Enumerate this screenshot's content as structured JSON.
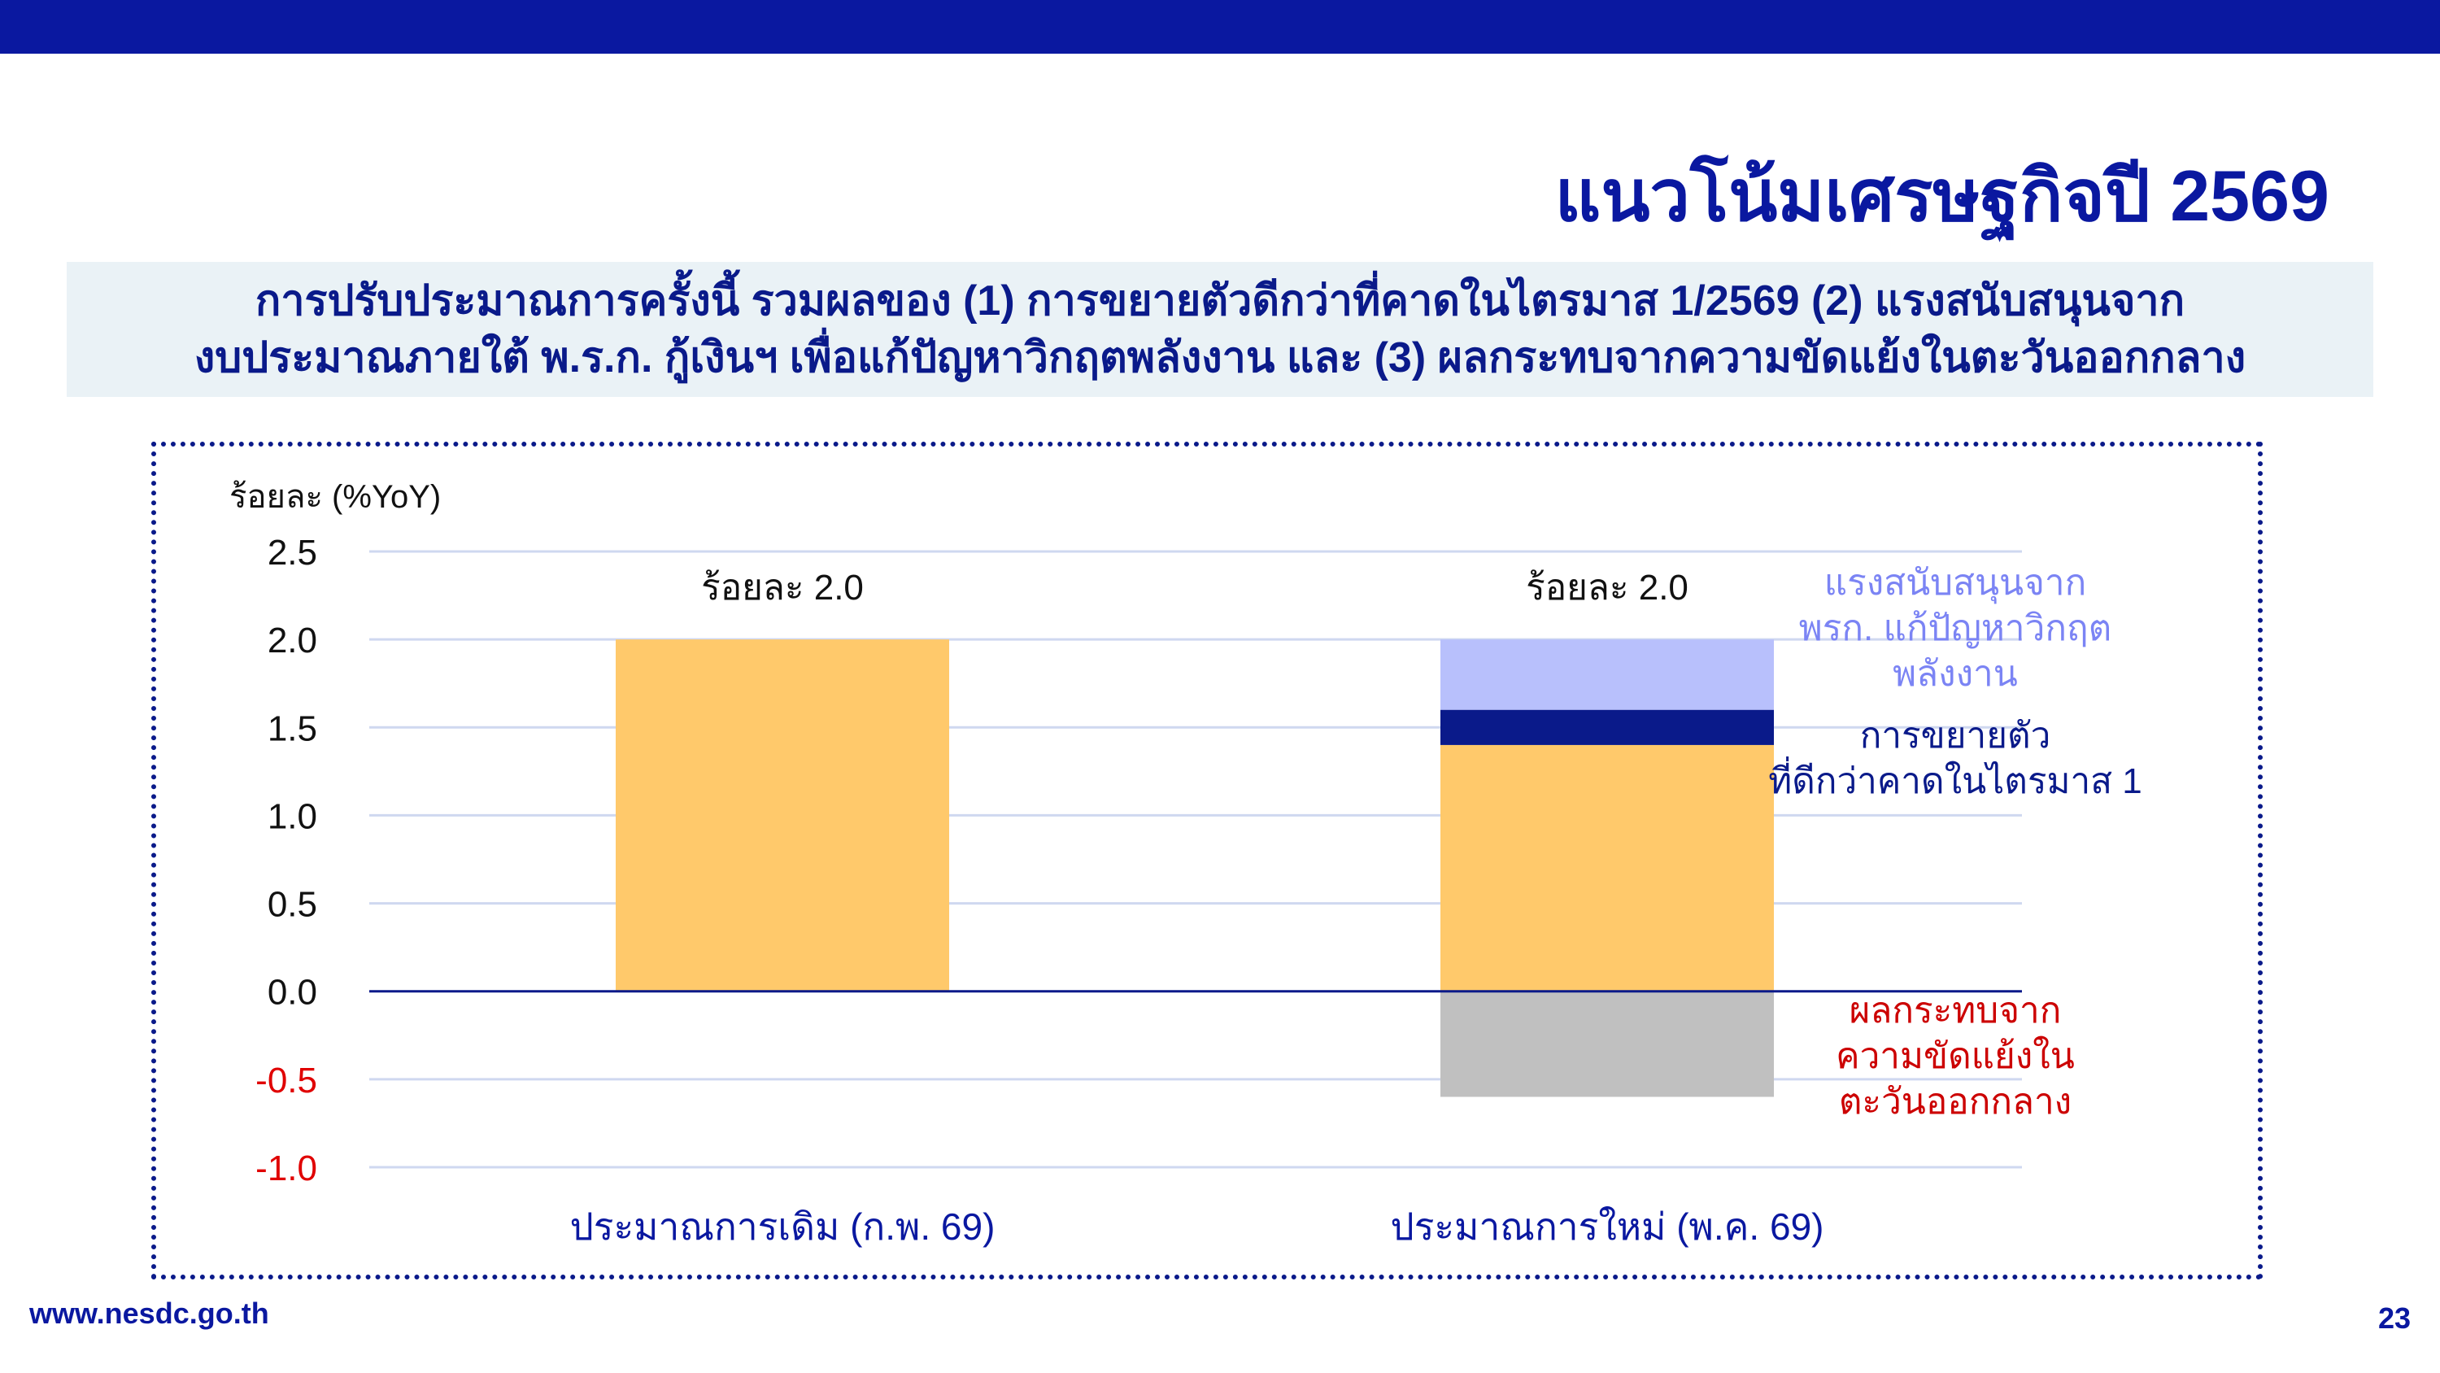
{
  "header": {
    "title": "แนวโน้มเศรษฐกิจปี 2569"
  },
  "subtitle": {
    "line1": "การปรับประมาณการครั้งนี้ รวมผลของ (1) การขยายตัวดีกว่าที่คาดในไตรมาส 1/2569 (2) แรงสนับสนุนจาก",
    "line2": "งบประมาณภายใต้ พ.ร.ก. กู้เงินฯ เพื่อแก้ปัญหาวิกฤตพลังงาน และ (3) ผลกระทบจากความขัดแย้งในตะวันออกกลาง"
  },
  "footer": {
    "url": "www.nesdc.go.th",
    "page_number": "23"
  },
  "colors": {
    "brand": "#0a18a0",
    "base_bar": "#ffc96b",
    "q1_segment": "#0a1a8a",
    "energy_segment": "#b8c0fc",
    "middle_east_segment": "#c0c0c0",
    "negative_tick": "#e00000",
    "gridline": "#cfd8f0"
  },
  "chart_data": {
    "type": "bar",
    "stacked": true,
    "ylabel": "ร้อยละ (%YoY)",
    "ylim": [
      -1.0,
      2.5
    ],
    "yticks": [
      "2.5",
      "2.0",
      "1.5",
      "1.0",
      "0.5",
      "0.0",
      "-0.5",
      "-1.0"
    ],
    "ytick_values": [
      2.5,
      2.0,
      1.5,
      1.0,
      0.5,
      0.0,
      -0.5,
      -1.0
    ],
    "grid": true,
    "categories": [
      "ประมาณการเดิม (ก.พ. 69)",
      "ประมาณการใหม่ (พ.ค. 69)"
    ],
    "totals": [
      "ร้อยละ 2.0",
      "ร้อยละ 2.0"
    ],
    "series": [
      {
        "key": "base",
        "values": [
          2.0,
          1.4
        ],
        "color": "#ffc96b"
      },
      {
        "key": "q1",
        "name": "การขยายตัว ที่ดีกว่าคาดในไตรมาส 1",
        "name_lines": [
          "การขยายตัว",
          "ที่ดีกว่าคาดในไตรมาส 1"
        ],
        "values": [
          0,
          0.2
        ],
        "color": "#0a1a8a"
      },
      {
        "key": "energy",
        "name": "แรงสนับสนุนจาก พรก. แก้ปัญหาวิกฤต พลังงาน",
        "name_lines": [
          "แรงสนับสนุนจาก",
          "พรก. แก้ปัญหาวิกฤต",
          "พลังงาน"
        ],
        "values": [
          0,
          0.4
        ],
        "color": "#b8c0fc"
      },
      {
        "key": "middle_east",
        "name": "ผลกระทบจาก ความขัดแย้งใน ตะวันออกกลาง",
        "name_lines": [
          "ผลกระทบจาก",
          "ความขัดแย้งใน",
          "ตะวันออกกลาง"
        ],
        "values": [
          0,
          -0.6
        ],
        "color": "#c0c0c0"
      }
    ]
  }
}
